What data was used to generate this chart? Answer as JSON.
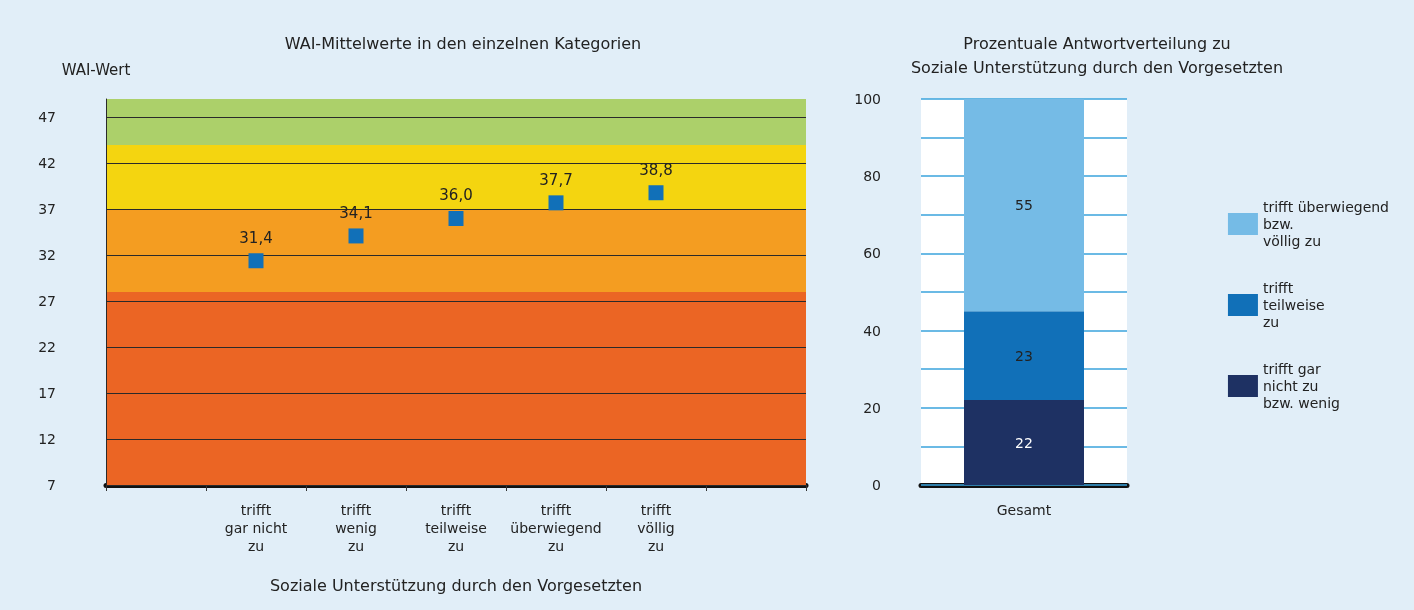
{
  "chart_data": [
    {
      "type": "scatter",
      "title": "WAI-Mittelwerte in den einzelnen Kategorien",
      "ylabel": "WAI-Wert",
      "xlabel": "Soziale Unterstützung durch den Vorgesetzten",
      "categories": [
        null,
        "trifft\ngar nicht\nzu",
        "trifft\nwenig\nzu",
        "trifft\nteilweise\nzu",
        "trifft\nüberwiegend\nzu",
        "trifft\nvöllig\nzu",
        null
      ],
      "series": [
        {
          "color": "#1170b8",
          "values": [
            null,
            31.4,
            34.1,
            36.0,
            37.7,
            38.8,
            null
          ],
          "value_labels": [
            null,
            "31,4",
            "34,1",
            "36,0",
            "37,7",
            "38,8",
            null
          ]
        }
      ],
      "marker": "square",
      "ylim": [
        7,
        49
      ],
      "yticks": [
        7,
        12,
        17,
        22,
        27,
        32,
        37,
        42,
        47
      ],
      "grid": "y",
      "legend": false,
      "bands": [
        {
          "axis": "y",
          "from": 7,
          "to": 28,
          "color": "#eb6524"
        },
        {
          "axis": "y",
          "from": 28,
          "to": 37,
          "color": "#f49d21"
        },
        {
          "axis": "y",
          "from": 37,
          "to": 44,
          "color": "#f4d510"
        },
        {
          "axis": "y",
          "from": 44,
          "to": 49,
          "color": "#acd06a"
        }
      ]
    },
    {
      "type": "bar",
      "stacked": true,
      "title": "Prozentuale Antwortverteilung zu\nSoziale Unterstützung durch den Vorgesetzten",
      "categories": [
        "Gesamt"
      ],
      "series": [
        {
          "name": "trifft gar\nnicht zu\nbzw. wenig",
          "color": "#1e3163",
          "values": [
            22
          ]
        },
        {
          "name": "trifft\nteilweise\nzu",
          "color": "#1170b8",
          "values": [
            23
          ]
        },
        {
          "name": "trifft überwiegend\nbzw.\nvöllig zu",
          "color": "#75bbe6",
          "values": [
            55
          ]
        }
      ],
      "data_labels": true,
      "ylim": [
        0,
        100
      ],
      "yticks": [
        0,
        {
          "value": 10,
          "label": null
        },
        20,
        {
          "value": 30,
          "label": null
        },
        40,
        {
          "value": 50,
          "label": null
        },
        60,
        {
          "value": 70,
          "label": null
        },
        80,
        {
          "value": 90,
          "label": null
        },
        100
      ],
      "grid": "y",
      "legend": "right"
    }
  ]
}
